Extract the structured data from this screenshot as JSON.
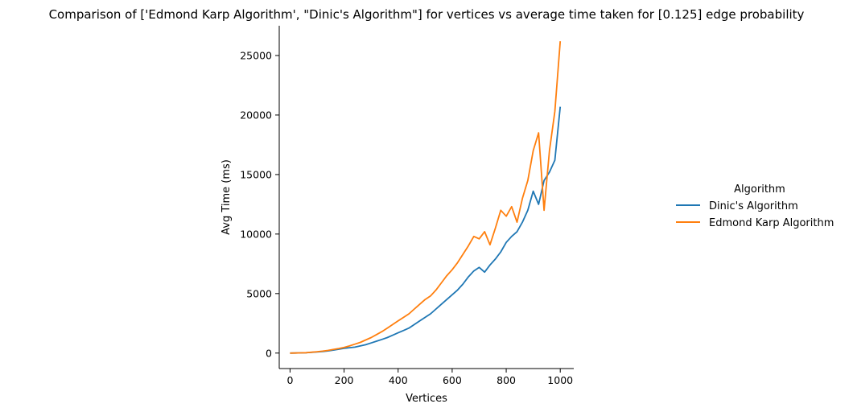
{
  "chart_data": {
    "type": "line",
    "title": "Comparison of ['Edmond Karp Algorithm', \"Dinic's Algorithm\"] for vertices vs average time taken for [0.125] edge probability",
    "xlabel": "Vertices",
    "ylabel": "Avg Time (ms)",
    "xlim": [
      -40,
      1050
    ],
    "ylim": [
      -1300,
      27500
    ],
    "xticks": [
      0,
      200,
      400,
      600,
      800,
      1000
    ],
    "yticks": [
      0,
      5000,
      10000,
      15000,
      20000,
      25000
    ],
    "grid": false,
    "legend": {
      "title": "Algorithm",
      "placement": "right"
    },
    "series": [
      {
        "name": "Dinic's Algorithm",
        "color": "#1f77b4",
        "x": [
          0,
          20,
          40,
          60,
          80,
          100,
          120,
          140,
          160,
          180,
          200,
          220,
          240,
          260,
          280,
          300,
          320,
          340,
          360,
          380,
          400,
          420,
          440,
          460,
          480,
          500,
          520,
          540,
          560,
          580,
          600,
          620,
          640,
          660,
          680,
          700,
          720,
          740,
          760,
          780,
          800,
          820,
          840,
          860,
          880,
          900,
          920,
          940,
          960,
          980,
          1000
        ],
        "y": [
          0,
          5,
          15,
          30,
          60,
          90,
          130,
          180,
          250,
          320,
          400,
          450,
          500,
          600,
          700,
          850,
          1000,
          1150,
          1300,
          1500,
          1700,
          1900,
          2100,
          2400,
          2700,
          3000,
          3300,
          3700,
          4100,
          4500,
          4900,
          5300,
          5800,
          6400,
          6900,
          7200,
          6800,
          7400,
          7900,
          8500,
          9300,
          9800,
          10200,
          11000,
          12000,
          13600,
          12500,
          14500,
          15200,
          16200,
          20700
        ]
      },
      {
        "name": "Edmond Karp Algorithm",
        "color": "#ff7f0e",
        "x": [
          0,
          20,
          40,
          60,
          80,
          100,
          120,
          140,
          160,
          180,
          200,
          220,
          240,
          260,
          280,
          300,
          320,
          340,
          360,
          380,
          400,
          420,
          440,
          460,
          480,
          500,
          520,
          540,
          560,
          580,
          600,
          620,
          640,
          660,
          680,
          700,
          720,
          740,
          760,
          780,
          800,
          820,
          840,
          860,
          880,
          900,
          920,
          940,
          960,
          980,
          1000
        ],
        "y": [
          0,
          5,
          15,
          35,
          70,
          110,
          160,
          220,
          300,
          380,
          480,
          600,
          750,
          900,
          1100,
          1300,
          1550,
          1800,
          2100,
          2400,
          2700,
          3000,
          3300,
          3700,
          4100,
          4500,
          4800,
          5300,
          5900,
          6500,
          7000,
          7600,
          8300,
          9000,
          9800,
          9600,
          10200,
          9100,
          10500,
          12000,
          11500,
          12300,
          11000,
          13000,
          14500,
          17000,
          18500,
          12000,
          17000,
          20300,
          26200
        ]
      }
    ]
  }
}
